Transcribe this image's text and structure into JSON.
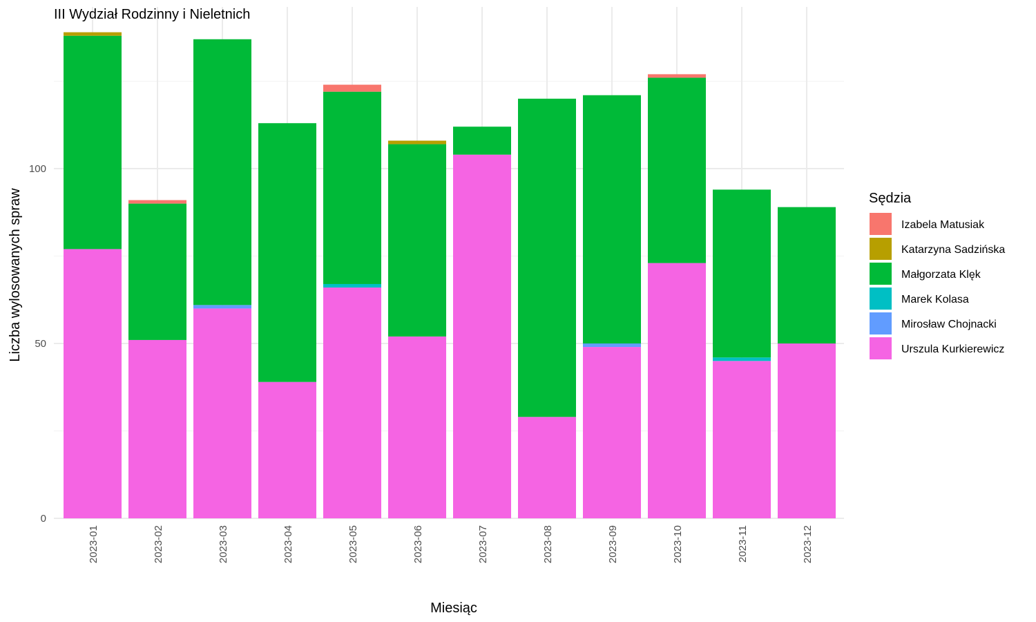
{
  "chart_data": {
    "type": "bar",
    "stacked": true,
    "title": "III Wydział Rodzinny i Nieletnich",
    "xlabel": "Miesiąc",
    "ylabel": "Liczba wylosowanych spraw",
    "ylim": [
      0,
      146
    ],
    "yticks": [
      0,
      50,
      100
    ],
    "grid": true,
    "legend_position": "right",
    "legend_title": "Sędzia",
    "categories": [
      "2023-01",
      "2023-02",
      "2023-03",
      "2023-04",
      "2023-05",
      "2023-06",
      "2023-07",
      "2023-08",
      "2023-09",
      "2023-10",
      "2023-11",
      "2023-12"
    ],
    "series": [
      {
        "name": "Urszula Kurkierewicz",
        "color": "#F564E3",
        "values": [
          77,
          51,
          60,
          39,
          66,
          52,
          104,
          29,
          49,
          73,
          45,
          50
        ]
      },
      {
        "name": "Mirosław Chojnacki",
        "color": "#619CFF",
        "values": [
          0,
          0,
          1,
          0,
          0,
          0,
          0,
          0,
          1,
          0,
          0,
          0
        ]
      },
      {
        "name": "Marek Kolasa",
        "color": "#00BFC4",
        "values": [
          0,
          0,
          0,
          0,
          1,
          0,
          0,
          0,
          0,
          0,
          1,
          0
        ]
      },
      {
        "name": "Małgorzata Klęk",
        "color": "#00BA38",
        "values": [
          61,
          39,
          76,
          74,
          55,
          55,
          8,
          91,
          71,
          53,
          48,
          39
        ]
      },
      {
        "name": "Katarzyna Sadzińska",
        "color": "#B79F00",
        "values": [
          1,
          0,
          0,
          0,
          0,
          1,
          0,
          0,
          0,
          0,
          0,
          0
        ]
      },
      {
        "name": "Izabela Matusiak",
        "color": "#F8766D",
        "values": [
          0,
          1,
          0,
          0,
          2,
          0,
          0,
          0,
          0,
          1,
          0,
          0
        ]
      }
    ],
    "legend_order": [
      "Izabela Matusiak",
      "Katarzyna Sadzińska",
      "Małgorzata Klęk",
      "Marek Kolasa",
      "Mirosław Chojnacki",
      "Urszula Kurkierewicz"
    ]
  }
}
